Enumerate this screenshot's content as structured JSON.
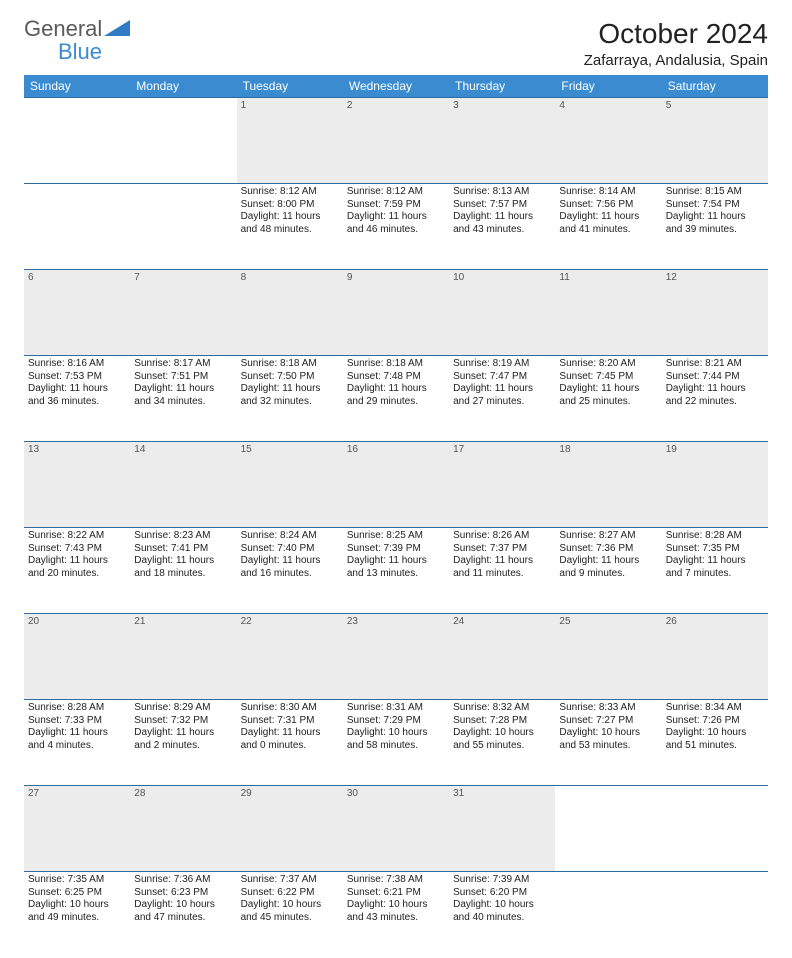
{
  "logo": {
    "word1": "General",
    "word2": "Blue",
    "shape_color": "#2f7cc4"
  },
  "header": {
    "month_title": "October 2024",
    "location": "Zafarraya, Andalusia, Spain"
  },
  "colors": {
    "header_bg": "#3b8bd0",
    "row_border": "#2e6ba0",
    "daynum_bg": "#ececec"
  },
  "day_headers": [
    "Sunday",
    "Monday",
    "Tuesday",
    "Wednesday",
    "Thursday",
    "Friday",
    "Saturday"
  ],
  "weeks": [
    {
      "nums": [
        "",
        "",
        "1",
        "2",
        "3",
        "4",
        "5"
      ],
      "cells": [
        null,
        null,
        {
          "sr": "Sunrise: 8:12 AM",
          "ss": "Sunset: 8:00 PM",
          "dl": "Daylight: 11 hours and 48 minutes."
        },
        {
          "sr": "Sunrise: 8:12 AM",
          "ss": "Sunset: 7:59 PM",
          "dl": "Daylight: 11 hours and 46 minutes."
        },
        {
          "sr": "Sunrise: 8:13 AM",
          "ss": "Sunset: 7:57 PM",
          "dl": "Daylight: 11 hours and 43 minutes."
        },
        {
          "sr": "Sunrise: 8:14 AM",
          "ss": "Sunset: 7:56 PM",
          "dl": "Daylight: 11 hours and 41 minutes."
        },
        {
          "sr": "Sunrise: 8:15 AM",
          "ss": "Sunset: 7:54 PM",
          "dl": "Daylight: 11 hours and 39 minutes."
        }
      ]
    },
    {
      "nums": [
        "6",
        "7",
        "8",
        "9",
        "10",
        "11",
        "12"
      ],
      "cells": [
        {
          "sr": "Sunrise: 8:16 AM",
          "ss": "Sunset: 7:53 PM",
          "dl": "Daylight: 11 hours and 36 minutes."
        },
        {
          "sr": "Sunrise: 8:17 AM",
          "ss": "Sunset: 7:51 PM",
          "dl": "Daylight: 11 hours and 34 minutes."
        },
        {
          "sr": "Sunrise: 8:18 AM",
          "ss": "Sunset: 7:50 PM",
          "dl": "Daylight: 11 hours and 32 minutes."
        },
        {
          "sr": "Sunrise: 8:18 AM",
          "ss": "Sunset: 7:48 PM",
          "dl": "Daylight: 11 hours and 29 minutes."
        },
        {
          "sr": "Sunrise: 8:19 AM",
          "ss": "Sunset: 7:47 PM",
          "dl": "Daylight: 11 hours and 27 minutes."
        },
        {
          "sr": "Sunrise: 8:20 AM",
          "ss": "Sunset: 7:45 PM",
          "dl": "Daylight: 11 hours and 25 minutes."
        },
        {
          "sr": "Sunrise: 8:21 AM",
          "ss": "Sunset: 7:44 PM",
          "dl": "Daylight: 11 hours and 22 minutes."
        }
      ]
    },
    {
      "nums": [
        "13",
        "14",
        "15",
        "16",
        "17",
        "18",
        "19"
      ],
      "cells": [
        {
          "sr": "Sunrise: 8:22 AM",
          "ss": "Sunset: 7:43 PM",
          "dl": "Daylight: 11 hours and 20 minutes."
        },
        {
          "sr": "Sunrise: 8:23 AM",
          "ss": "Sunset: 7:41 PM",
          "dl": "Daylight: 11 hours and 18 minutes."
        },
        {
          "sr": "Sunrise: 8:24 AM",
          "ss": "Sunset: 7:40 PM",
          "dl": "Daylight: 11 hours and 16 minutes."
        },
        {
          "sr": "Sunrise: 8:25 AM",
          "ss": "Sunset: 7:39 PM",
          "dl": "Daylight: 11 hours and 13 minutes."
        },
        {
          "sr": "Sunrise: 8:26 AM",
          "ss": "Sunset: 7:37 PM",
          "dl": "Daylight: 11 hours and 11 minutes."
        },
        {
          "sr": "Sunrise: 8:27 AM",
          "ss": "Sunset: 7:36 PM",
          "dl": "Daylight: 11 hours and 9 minutes."
        },
        {
          "sr": "Sunrise: 8:28 AM",
          "ss": "Sunset: 7:35 PM",
          "dl": "Daylight: 11 hours and 7 minutes."
        }
      ]
    },
    {
      "nums": [
        "20",
        "21",
        "22",
        "23",
        "24",
        "25",
        "26"
      ],
      "cells": [
        {
          "sr": "Sunrise: 8:28 AM",
          "ss": "Sunset: 7:33 PM",
          "dl": "Daylight: 11 hours and 4 minutes."
        },
        {
          "sr": "Sunrise: 8:29 AM",
          "ss": "Sunset: 7:32 PM",
          "dl": "Daylight: 11 hours and 2 minutes."
        },
        {
          "sr": "Sunrise: 8:30 AM",
          "ss": "Sunset: 7:31 PM",
          "dl": "Daylight: 11 hours and 0 minutes."
        },
        {
          "sr": "Sunrise: 8:31 AM",
          "ss": "Sunset: 7:29 PM",
          "dl": "Daylight: 10 hours and 58 minutes."
        },
        {
          "sr": "Sunrise: 8:32 AM",
          "ss": "Sunset: 7:28 PM",
          "dl": "Daylight: 10 hours and 55 minutes."
        },
        {
          "sr": "Sunrise: 8:33 AM",
          "ss": "Sunset: 7:27 PM",
          "dl": "Daylight: 10 hours and 53 minutes."
        },
        {
          "sr": "Sunrise: 8:34 AM",
          "ss": "Sunset: 7:26 PM",
          "dl": "Daylight: 10 hours and 51 minutes."
        }
      ]
    },
    {
      "nums": [
        "27",
        "28",
        "29",
        "30",
        "31",
        "",
        ""
      ],
      "cells": [
        {
          "sr": "Sunrise: 7:35 AM",
          "ss": "Sunset: 6:25 PM",
          "dl": "Daylight: 10 hours and 49 minutes."
        },
        {
          "sr": "Sunrise: 7:36 AM",
          "ss": "Sunset: 6:23 PM",
          "dl": "Daylight: 10 hours and 47 minutes."
        },
        {
          "sr": "Sunrise: 7:37 AM",
          "ss": "Sunset: 6:22 PM",
          "dl": "Daylight: 10 hours and 45 minutes."
        },
        {
          "sr": "Sunrise: 7:38 AM",
          "ss": "Sunset: 6:21 PM",
          "dl": "Daylight: 10 hours and 43 minutes."
        },
        {
          "sr": "Sunrise: 7:39 AM",
          "ss": "Sunset: 6:20 PM",
          "dl": "Daylight: 10 hours and 40 minutes."
        },
        null,
        null
      ]
    }
  ]
}
